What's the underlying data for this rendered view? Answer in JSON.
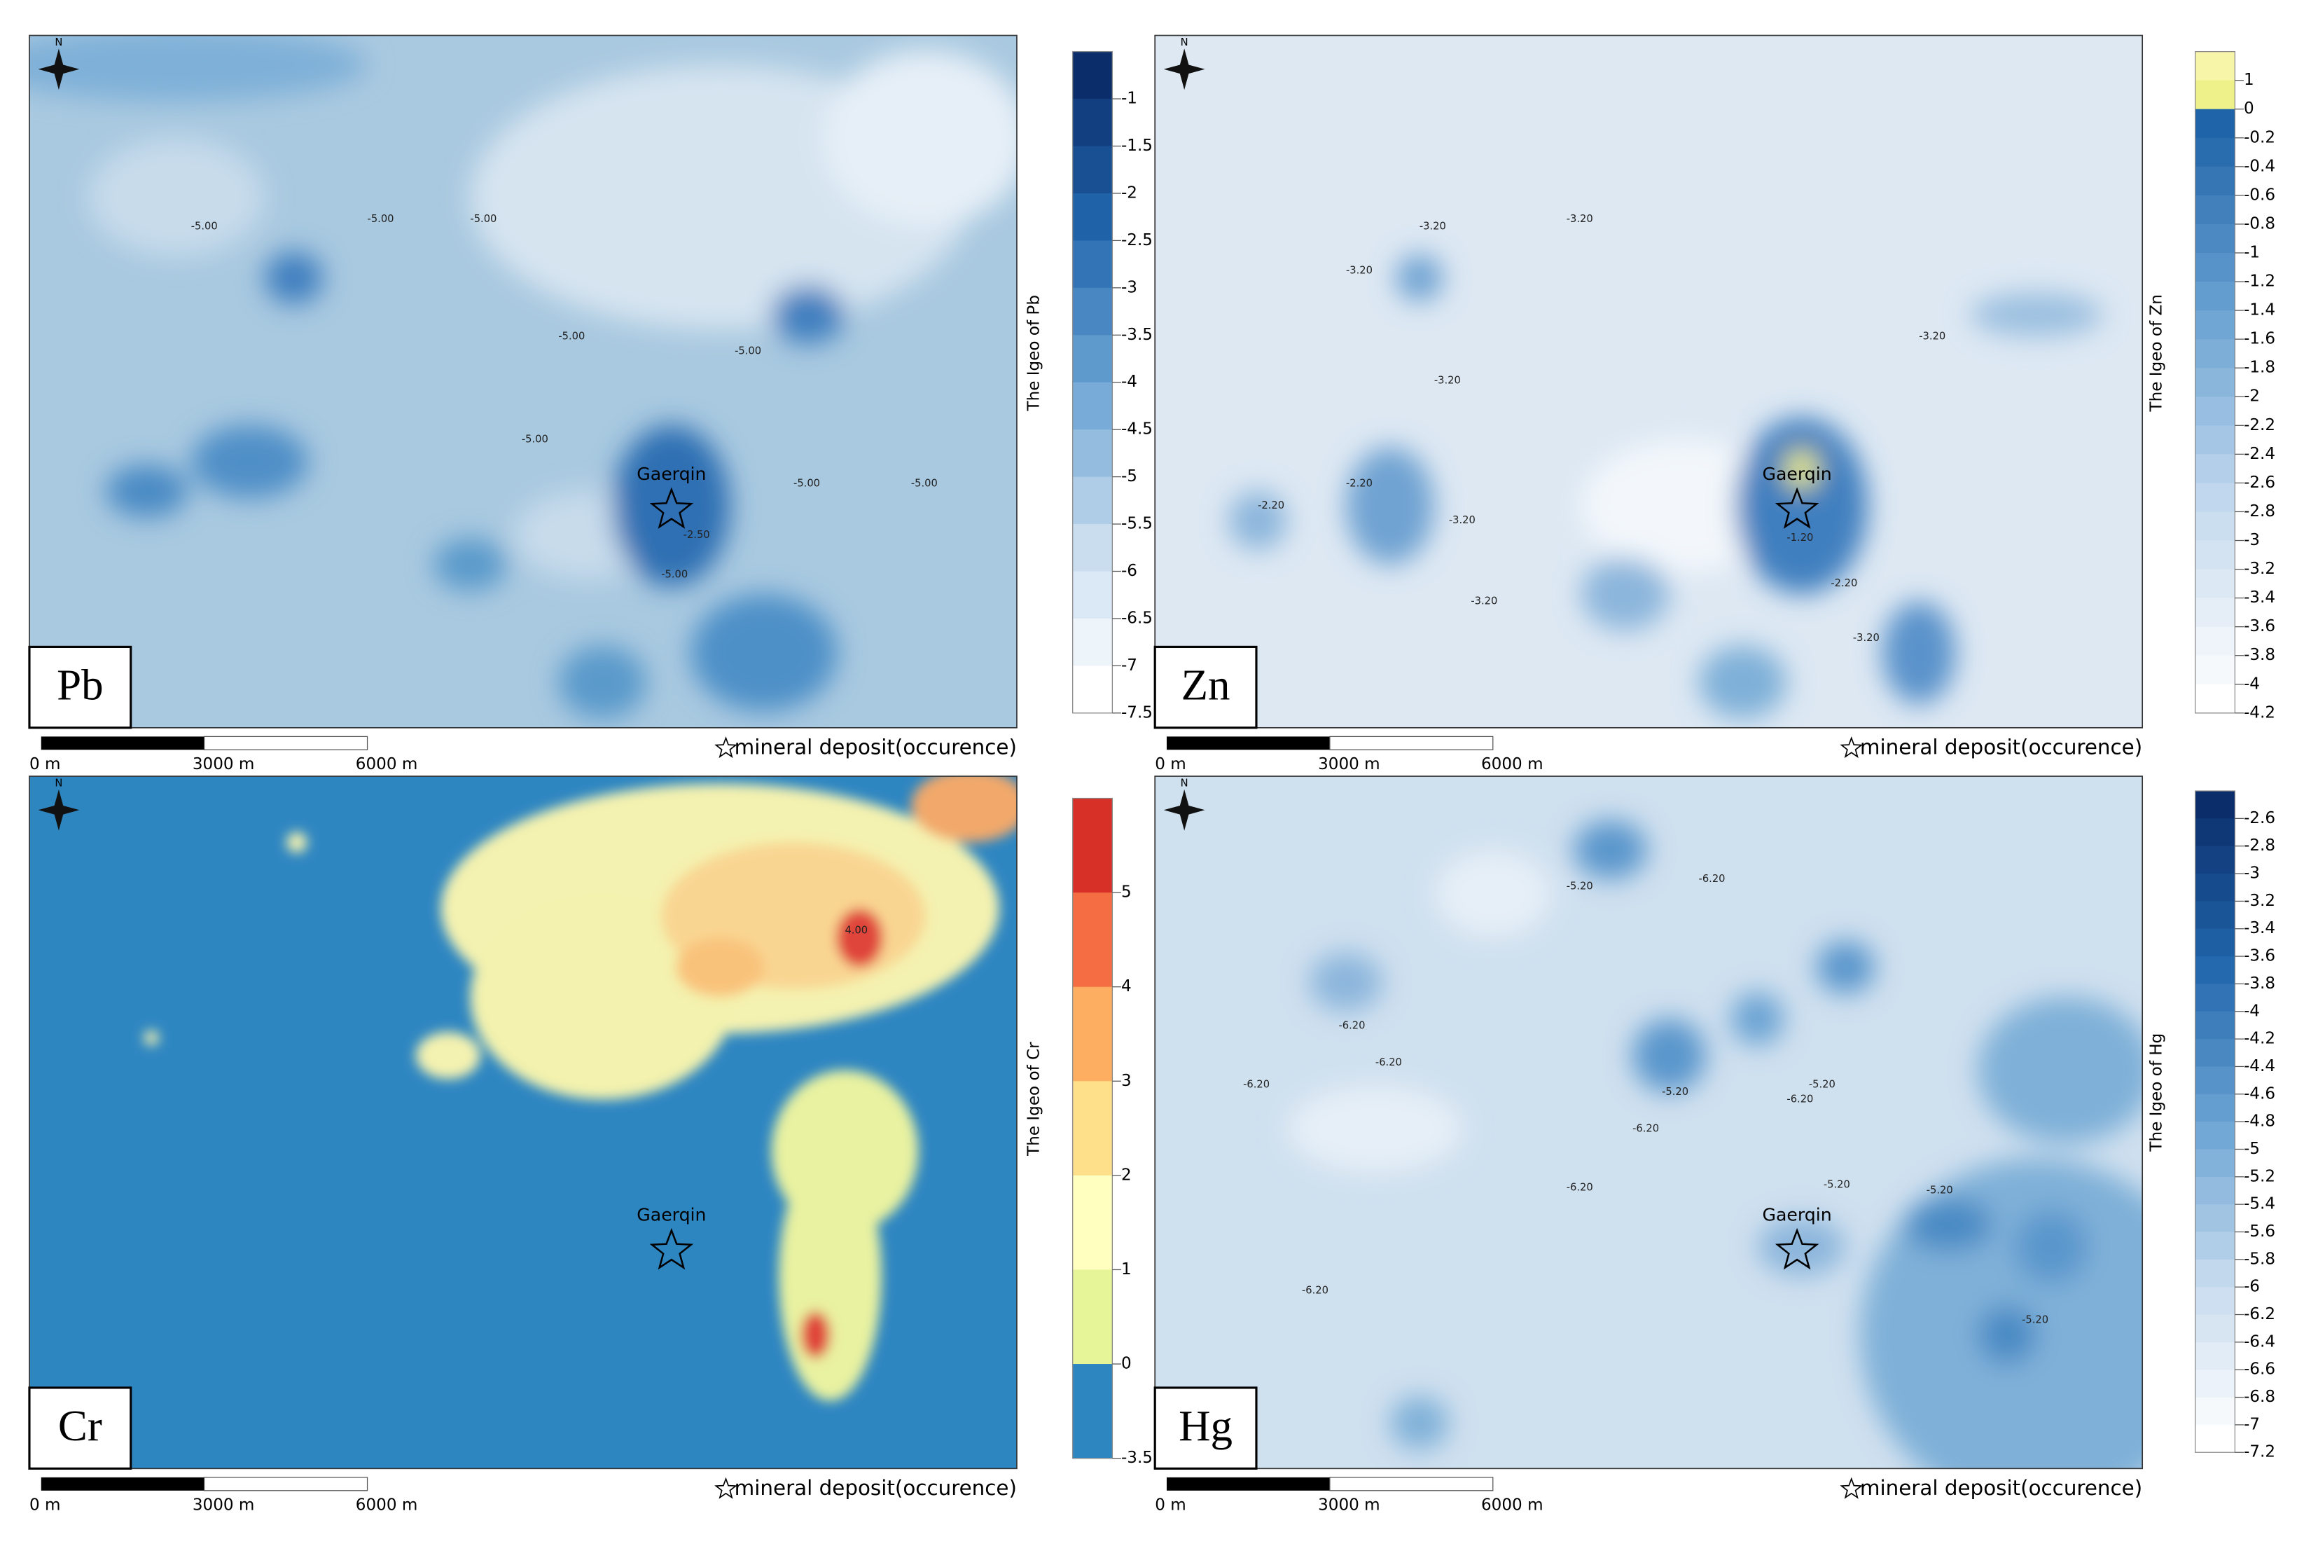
{
  "north": "N",
  "deposit_legend": "mineral deposit(occurence)",
  "scale_labels": [
    "0 m",
    "3000 m",
    "6000 m"
  ],
  "panels": [
    {
      "label": "Pb",
      "deposit": "Gaerqin",
      "colorbar_title": "The Igeo of Pb",
      "colorbar_ticks": [
        -1,
        -1.5,
        -2,
        -2.5,
        -3,
        -3.5,
        -4,
        -4.5,
        -5,
        -5.5,
        -6,
        -6.5,
        -7,
        -7.5
      ],
      "contour_labels": [
        "-5.00",
        "-5.00",
        "-5.00",
        "-5.00",
        "-5.00",
        "-5.00",
        "-5.00",
        "-5.00",
        "-2.50",
        "-5.00"
      ]
    },
    {
      "label": "Zn",
      "deposit": "Gaerqin",
      "colorbar_title": "The Igeo of Zn",
      "colorbar_ticks": [
        1,
        0,
        -0.2,
        -0.4,
        -0.6,
        -0.8,
        -1,
        -1.2,
        -1.4,
        -1.6,
        -1.8,
        -2,
        -2.2,
        -2.4,
        -2.6,
        -2.8,
        -3,
        -3.2,
        -3.4,
        -3.6,
        -3.8,
        -4,
        -4.2
      ],
      "contour_labels": [
        "-3.20",
        "-3.20",
        "-3.20",
        "-3.20",
        "-2.20",
        "-2.20",
        "-3.20",
        "-1.20",
        "-2.20",
        "-3.20",
        "-3.20",
        "-3.20"
      ]
    },
    {
      "label": "Cr",
      "deposit": "Gaerqin",
      "colorbar_title": "The Igeo of Cr",
      "colorbar_ticks": [
        5,
        4,
        3,
        2,
        1,
        0,
        -3.5
      ],
      "contour_labels": [
        "4.00"
      ]
    },
    {
      "label": "Hg",
      "deposit": "Gaerqin",
      "colorbar_title": "The Igeo of Hg",
      "colorbar_ticks": [
        -2.6,
        -2.8,
        -3,
        -3.2,
        -3.4,
        -3.6,
        -3.8,
        -4,
        -4.2,
        -4.4,
        -4.6,
        -4.8,
        -5,
        -5.2,
        -5.4,
        -5.6,
        -5.8,
        -6,
        -6.2,
        -6.4,
        -6.6,
        -6.8,
        -7,
        -7.2
      ],
      "contour_labels": [
        "-5.20",
        "-6.20",
        "-6.20",
        "-6.20",
        "-6.20",
        "-5.20",
        "-5.20",
        "-6.20",
        "-6.20",
        "-6.20",
        "-5.20",
        "-5.20",
        "-6.20",
        "-5.20"
      ]
    }
  ]
}
